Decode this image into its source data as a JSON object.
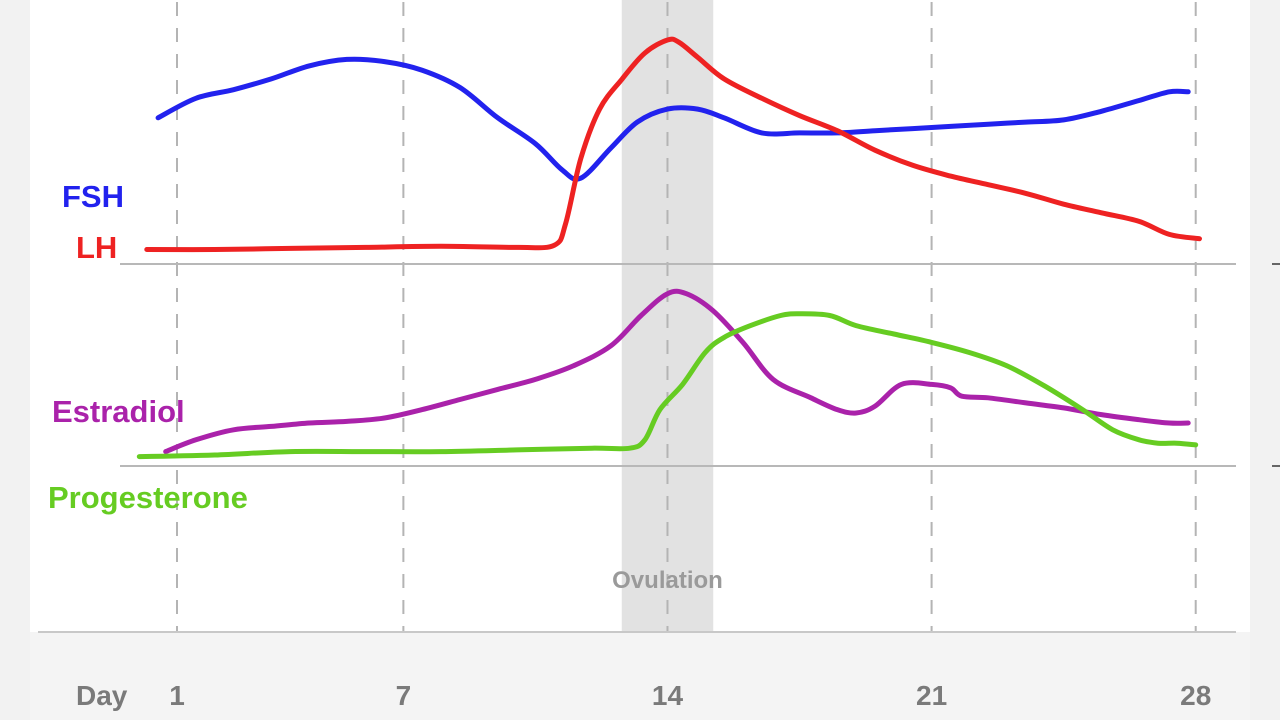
{
  "chart_data": {
    "type": "line",
    "x_label_prefix": "Day",
    "x_ticks": [
      1,
      7,
      14,
      21,
      28
    ],
    "x_range": [
      0,
      28.2
    ],
    "highlight_band": {
      "label": "Ovulation",
      "x_range": [
        13,
        15
      ]
    },
    "grid": true,
    "panels": [
      {
        "series": [
          {
            "name": "FSH",
            "color": "#2222ee",
            "x": [
              0.5,
              1.5,
              2.5,
              3.5,
              4.5,
              5.5,
              6.5,
              7.5,
              8.5,
              9.5,
              10.5,
              11.2,
              11.7,
              12.5,
              13.2,
              14,
              14.8,
              15.5,
              16.5,
              17.5,
              18.5,
              19.5,
              20.5,
              21.5,
              22.5,
              23.5,
              24.5,
              25.5,
              26.5,
              27.3,
              27.8
            ],
            "values": [
              0.64,
              0.73,
              0.77,
              0.82,
              0.88,
              0.91,
              0.9,
              0.86,
              0.78,
              0.64,
              0.52,
              0.4,
              0.36,
              0.5,
              0.62,
              0.68,
              0.68,
              0.64,
              0.57,
              0.57,
              0.57,
              0.58,
              0.59,
              0.6,
              0.61,
              0.62,
              0.63,
              0.67,
              0.72,
              0.76,
              0.76
            ]
          },
          {
            "name": "LH",
            "color": "#ee2222",
            "x": [
              0.2,
              2,
              4,
              6,
              8,
              10,
              11,
              11.3,
              11.7,
              12.2,
              12.8,
              13.4,
              14,
              14.3,
              14.8,
              15.5,
              16.5,
              17.5,
              18.5,
              19.5,
              20.5,
              21.5,
              22.5,
              23.5,
              24.5,
              25.5,
              26.5,
              27.3,
              28.1
            ],
            "values": [
              0.03,
              0.03,
              0.035,
              0.04,
              0.045,
              0.04,
              0.05,
              0.15,
              0.45,
              0.68,
              0.82,
              0.94,
              1.0,
              0.99,
              0.92,
              0.82,
              0.73,
              0.65,
              0.58,
              0.49,
              0.42,
              0.37,
              0.33,
              0.29,
              0.24,
              0.2,
              0.16,
              0.1,
              0.08
            ]
          }
        ]
      },
      {
        "series": [
          {
            "name": "Estradiol",
            "color": "#aa22aa",
            "x": [
              0.7,
              1.5,
              2.5,
              3.5,
              4.5,
              5.5,
              6.5,
              7.5,
              8.5,
              9.5,
              10.5,
              11.5,
              12.5,
              13.3,
              14,
              14.5,
              15.2,
              16,
              16.8,
              17.8,
              18.5,
              19,
              19.5,
              20.2,
              21,
              21.5,
              21.8,
              22.5,
              23.5,
              24.5,
              25.5,
              26.5,
              27.3,
              27.8
            ],
            "values": [
              0.05,
              0.12,
              0.18,
              0.2,
              0.22,
              0.23,
              0.25,
              0.3,
              0.36,
              0.42,
              0.48,
              0.56,
              0.68,
              0.86,
              0.99,
              0.99,
              0.89,
              0.7,
              0.48,
              0.37,
              0.3,
              0.28,
              0.32,
              0.45,
              0.45,
              0.43,
              0.38,
              0.37,
              0.34,
              0.31,
              0.27,
              0.24,
              0.22,
              0.22
            ]
          },
          {
            "name": "Progesterone",
            "color": "#66cc22",
            "x": [
              0,
              2,
              4,
              6,
              8,
              10,
              12,
              13,
              13.4,
              13.8,
              14.4,
              15,
              15.5,
              16.2,
              17,
              17.5,
              18.3,
              19,
              20,
              21,
              22,
              23,
              24,
              25,
              25.8,
              26.5,
              27,
              27.5,
              28
            ],
            "values": [
              0.02,
              0.03,
              0.05,
              0.05,
              0.05,
              0.06,
              0.07,
              0.07,
              0.12,
              0.3,
              0.45,
              0.64,
              0.73,
              0.8,
              0.86,
              0.87,
              0.86,
              0.8,
              0.75,
              0.7,
              0.64,
              0.56,
              0.44,
              0.3,
              0.18,
              0.12,
              0.1,
              0.1,
              0.09
            ]
          }
        ]
      }
    ]
  }
}
